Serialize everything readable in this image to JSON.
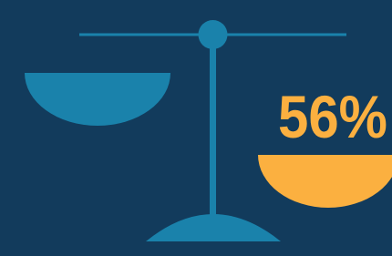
{
  "label": "56%"
}
